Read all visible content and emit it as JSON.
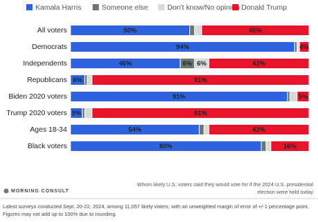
{
  "chart_data": {
    "type": "stacked-bar",
    "orientation": "horizontal",
    "categories": [
      "All voters",
      "Democrats",
      "Independents",
      "Republicans",
      "Biden 2020 voters",
      "Trump 2020 voters",
      "Ages 18-34",
      "Black voters"
    ],
    "xlim": [
      0,
      100
    ],
    "legend": "top",
    "series": [
      {
        "name": "Kamala Harris",
        "color": "#2f62df",
        "values": [
          50,
          94,
          46,
          6,
          91,
          5,
          54,
          80
        ],
        "value_labels": [
          "50%",
          "94%",
          "46%",
          "6%",
          "91%",
          "5%",
          "54%",
          "80%"
        ]
      },
      {
        "name": "Someone else",
        "color": "#687676",
        "values": [
          2,
          1,
          6,
          1,
          1,
          1,
          2,
          2
        ],
        "value_labels": [
          null,
          null,
          "6%",
          null,
          null,
          null,
          null,
          null
        ]
      },
      {
        "name": "Don't know/No opinion",
        "color": "#d9d9d9",
        "values": [
          3,
          1,
          6,
          2,
          3,
          3,
          2,
          2
        ],
        "value_labels": [
          null,
          null,
          "6%",
          null,
          null,
          null,
          null,
          null
        ]
      },
      {
        "name": "Donald Trump",
        "color": "#e8142b",
        "values": [
          45,
          4,
          42,
          91,
          5,
          91,
          42,
          16
        ],
        "value_labels": [
          "45%",
          "4%",
          "42%",
          "91%",
          "5%",
          "91%",
          "42%",
          "16%"
        ]
      }
    ],
    "note": [
      "Whom likely U.S. voters said they would vote for if the 2024 U.S. presidential",
      "election were held today"
    ],
    "source": "MORNING CONSULT",
    "footer": [
      "Latest surveys conducted Sept. 20-22, 2024, among 11,057 likely voters, with an unweighted margin of error of +/-1 percentage point.",
      "Figures may not add up to 100% due to rounding."
    ]
  }
}
